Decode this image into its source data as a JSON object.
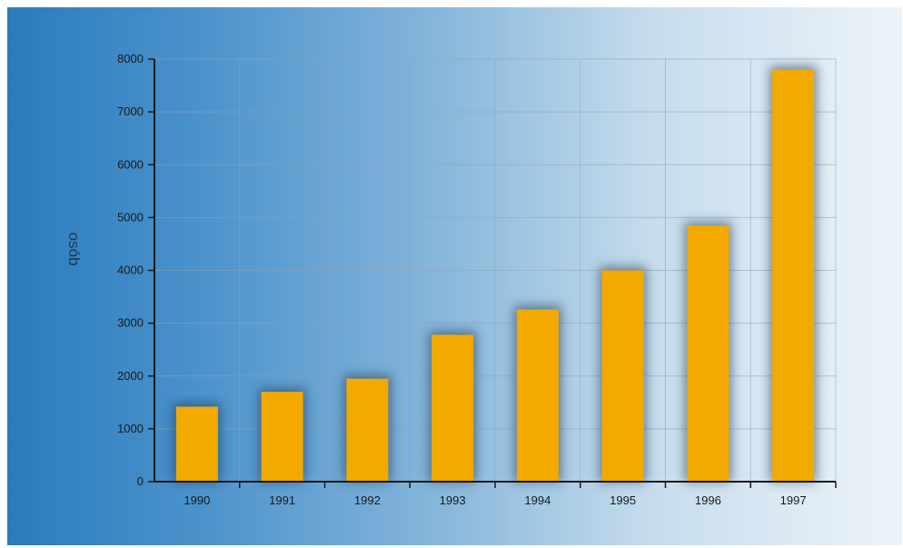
{
  "chart_data": {
    "type": "bar",
    "title": "",
    "xlabel": "",
    "ylabel": "osób",
    "categories": [
      "1990",
      "1991",
      "1992",
      "1993",
      "1994",
      "1995",
      "1996",
      "1997"
    ],
    "values": [
      1420,
      1700,
      1950,
      2780,
      3260,
      4000,
      4850,
      7800
    ],
    "ylim": [
      0,
      8000
    ],
    "yticks": [
      0,
      1000,
      2000,
      3000,
      4000,
      5000,
      6000,
      7000,
      8000
    ],
    "grid": true,
    "legend": "none",
    "colors": {
      "bar": "#f2a900",
      "bar_shadow": "#1c3550",
      "grid": "#8ea4b8",
      "axis": "#1a1a1a",
      "background_left": "#2a7bbd",
      "background_right": "#edf4f9"
    }
  }
}
